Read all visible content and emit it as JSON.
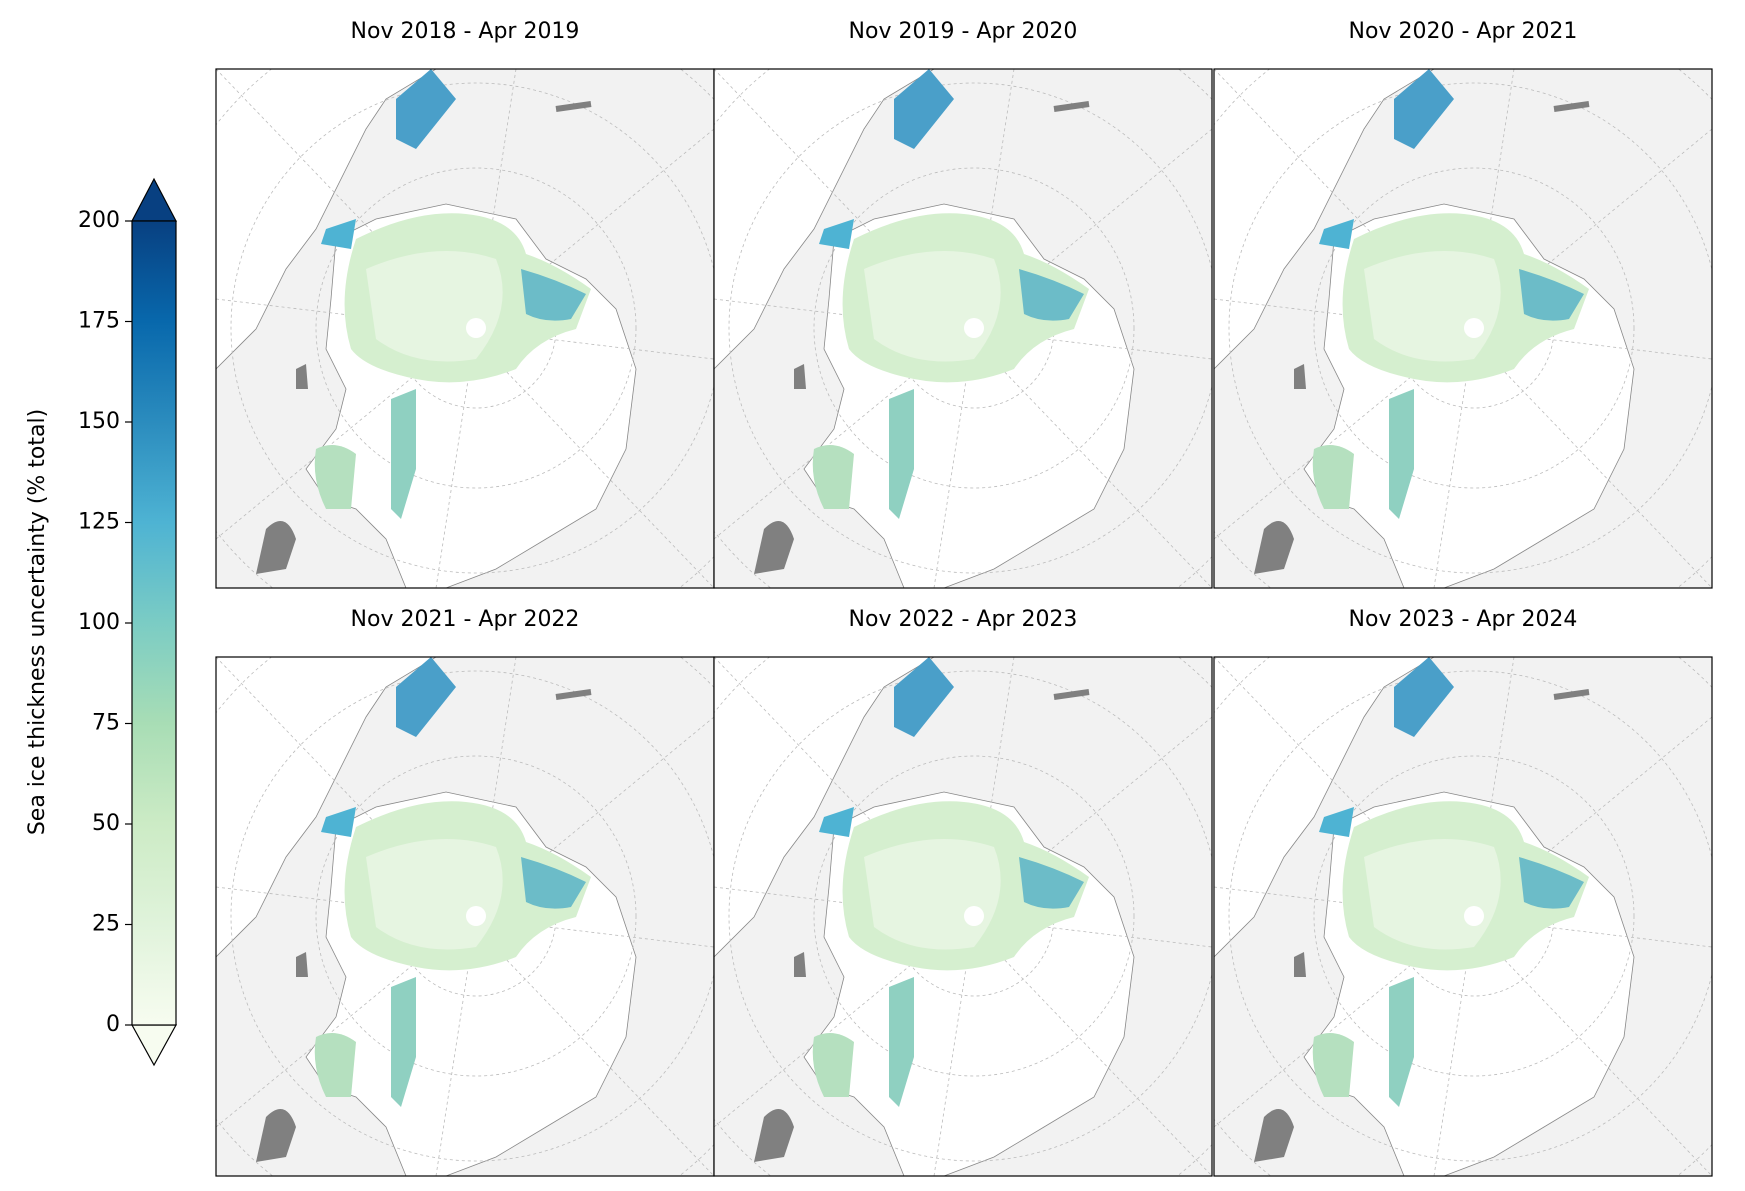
{
  "colorbar": {
    "label": "Sea ice thickness uncertainty (% total)",
    "lim": [
      0,
      200
    ],
    "ticks": [
      0,
      25,
      50,
      75,
      100,
      125,
      150,
      175,
      200
    ],
    "colors": [
      "#f7fcf0",
      "#e0f3db",
      "#ccebc5",
      "#a8ddb5",
      "#7bccc4",
      "#4eb3d3",
      "#2b8cbe",
      "#0868ac",
      "#084081"
    ]
  },
  "panels": [
    {
      "title": "Nov 2018 - Apr 2019"
    },
    {
      "title": "Nov 2019 - Apr 2020"
    },
    {
      "title": "Nov 2020 - Apr 2021"
    },
    {
      "title": "Nov 2021 - Apr 2022"
    },
    {
      "title": "Nov 2022 - Apr 2023"
    },
    {
      "title": "Nov 2023 - Apr 2024"
    }
  ]
}
